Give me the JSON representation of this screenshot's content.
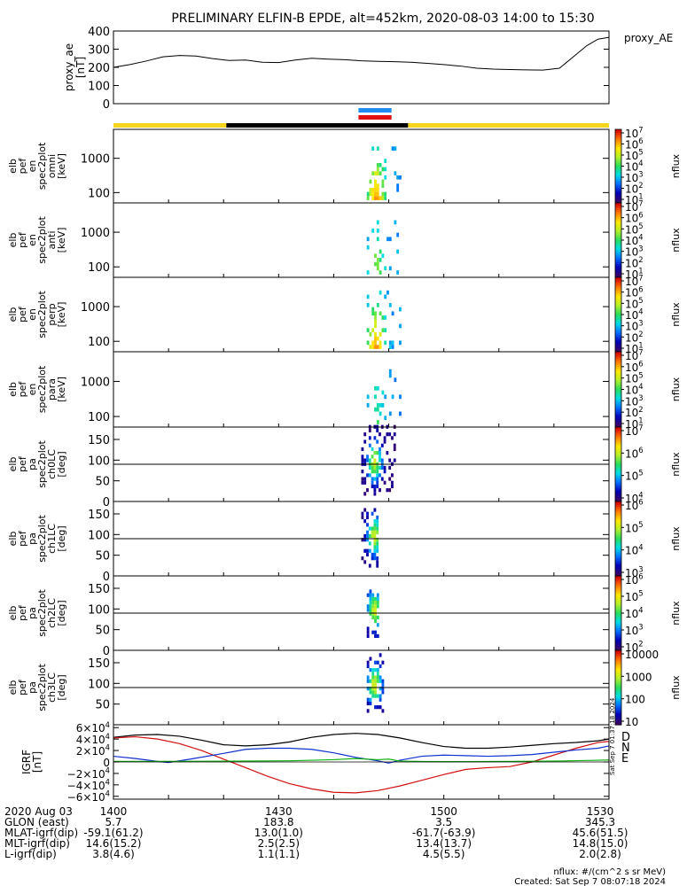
{
  "title": "PRELIMINARY ELFIN-B EPDE, alt=452km, 2020-08-03 14:00 to 15:30",
  "colors": {
    "bar_yellow": "#f5d41c",
    "bar_black": "#000000",
    "bar_blue": "#1e8cf0",
    "bar_red": "#e01010",
    "igrf_total": "#000000",
    "igrf_d": "#d01010",
    "igrf_n": "#1030d0",
    "igrf_e": "#10b010"
  },
  "chart_data": [
    {
      "type": "line",
      "panel": "proxy_ae",
      "ylabel": [
        "proxy_ae",
        "[nT]"
      ],
      "legend": "proxy_AE",
      "ylim": [
        0,
        400
      ],
      "yticks": [
        "400",
        "300",
        "200",
        "100",
        "0"
      ],
      "ytick_values": [
        400,
        300,
        200,
        100,
        0
      ],
      "xlim": [
        0,
        90
      ],
      "series": [
        {
          "x": [
            0,
            3,
            6,
            9,
            12,
            15,
            18,
            21,
            24,
            27,
            30,
            33,
            36,
            39,
            42,
            45,
            48,
            51,
            54,
            57,
            60,
            63,
            66,
            69,
            72,
            75,
            78,
            81,
            84,
            86,
            88,
            90
          ],
          "values": [
            200,
            215,
            235,
            258,
            265,
            262,
            248,
            238,
            240,
            228,
            226,
            240,
            250,
            245,
            242,
            236,
            233,
            231,
            228,
            222,
            215,
            207,
            195,
            190,
            188,
            186,
            185,
            195,
            270,
            320,
            355,
            365
          ]
        }
      ]
    },
    {
      "type": "heatmap",
      "panel": "elb_pef_en_spec2plot_omni",
      "ylabel": [
        "elb",
        "pef",
        "en",
        "spec2plot",
        "omni",
        "[keV]"
      ],
      "yticks": [
        "1000",
        "100"
      ],
      "colorbar": {
        "label": "nflux",
        "ticks": [
          "10^7",
          "10^6",
          "10^5",
          "10^4",
          "10^3",
          "10^2",
          "10^1"
        ]
      },
      "activity_minutes": [
        46,
        52
      ]
    },
    {
      "type": "heatmap",
      "panel": "elb_pef_en_spec2plot_anti",
      "ylabel": [
        "elb",
        "pef",
        "en",
        "spec2plot",
        "anti",
        "[keV]"
      ],
      "yticks": [
        "1000",
        "100"
      ],
      "colorbar": {
        "label": "nflux",
        "ticks": [
          "10^7",
          "10^6",
          "10^5",
          "10^4",
          "10^3",
          "10^2",
          "10^1"
        ]
      },
      "activity_minutes": [
        46,
        52
      ]
    },
    {
      "type": "heatmap",
      "panel": "elb_pef_en_spec2plot_perp",
      "ylabel": [
        "elb",
        "pef",
        "en",
        "spec2plot",
        "perp",
        "[keV]"
      ],
      "yticks": [
        "1000",
        "100"
      ],
      "colorbar": {
        "label": "nflux",
        "ticks": [
          "10^7",
          "10^6",
          "10^5",
          "10^4",
          "10^3",
          "10^2",
          "10^1"
        ]
      },
      "activity_minutes": [
        46,
        52
      ]
    },
    {
      "type": "heatmap",
      "panel": "elb_pef_en_spec2plot_para",
      "ylabel": [
        "elb",
        "pef",
        "en",
        "spec2plot",
        "para",
        "[keV]"
      ],
      "yticks": [
        "1000",
        "100"
      ],
      "colorbar": {
        "label": "nflux",
        "ticks": [
          "10^7",
          "10^6",
          "10^5",
          "10^4",
          "10^3",
          "10^2",
          "10^1"
        ]
      },
      "activity_minutes": [
        46,
        52
      ]
    },
    {
      "type": "heatmap",
      "panel": "elb_pef_pa_spec2plot_ch0LC",
      "ylabel": [
        "elb",
        "pef",
        "pa",
        "spec2plot",
        "ch0LC",
        "[deg]"
      ],
      "yticks": [
        "150",
        "100",
        "50",
        "0"
      ],
      "ytick_values": [
        150,
        100,
        50,
        0
      ],
      "ylim": [
        0,
        180
      ],
      "colorbar": {
        "label": "nflux",
        "ticks": [
          "10^7",
          "10^6",
          "10^5",
          "10^4"
        ]
      },
      "activity_minutes": [
        45,
        51
      ]
    },
    {
      "type": "heatmap",
      "panel": "elb_pef_pa_spec2plot_ch1LC",
      "ylabel": [
        "elb",
        "pef",
        "pa",
        "spec2plot",
        "ch1LC",
        "[deg]"
      ],
      "yticks": [
        "150",
        "100",
        "50",
        "0"
      ],
      "ytick_values": [
        150,
        100,
        50,
        0
      ],
      "ylim": [
        0,
        180
      ],
      "colorbar": {
        "label": "nflux",
        "ticks": [
          "10^6",
          "10^5",
          "10^4",
          "10^3"
        ]
      },
      "activity_minutes": [
        45,
        48
      ]
    },
    {
      "type": "heatmap",
      "panel": "elb_pef_pa_spec2plot_ch2LC",
      "ylabel": [
        "elb",
        "pef",
        "pa",
        "spec2plot",
        "ch2LC",
        "[deg]"
      ],
      "yticks": [
        "150",
        "100",
        "50",
        "0"
      ],
      "ytick_values": [
        150,
        100,
        50,
        0
      ],
      "ylim": [
        0,
        180
      ],
      "colorbar": {
        "label": "nflux",
        "ticks": [
          "10^6",
          "10^5",
          "10^4",
          "10^3",
          "10^2"
        ]
      },
      "activity_minutes": [
        46,
        48
      ]
    },
    {
      "type": "heatmap",
      "panel": "elb_pef_pa_spec2plot_ch3LC",
      "ylabel": [
        "elb",
        "pef",
        "pa",
        "spec2plot",
        "ch3LC",
        "[deg]"
      ],
      "yticks": [
        "150",
        "100",
        "50"
      ],
      "ytick_values": [
        150,
        100,
        50
      ],
      "ylim": [
        0,
        180
      ],
      "colorbar": {
        "label": "nflux",
        "ticks": [
          "10000",
          "1000",
          "100",
          "10"
        ]
      },
      "activity_minutes": [
        46,
        49
      ]
    },
    {
      "type": "line",
      "panel": "igrf",
      "ylabel": [
        "IGRF",
        "[nT]"
      ],
      "yticks": [
        "6×10^4",
        "4×10^4",
        "2×10^4",
        "0",
        "−2×10^4",
        "−4×10^4",
        "−6×10^4"
      ],
      "ytick_values": [
        60000,
        40000,
        20000,
        0,
        -20000,
        -40000,
        -60000
      ],
      "ylim": [
        -65000,
        65000
      ],
      "xlim": [
        0,
        90
      ],
      "legend": [
        "D",
        "N",
        "E"
      ],
      "series": [
        {
          "name": "total",
          "x": [
            0,
            4,
            8,
            12,
            16,
            20,
            24,
            28,
            32,
            36,
            40,
            44,
            48,
            52,
            56,
            60,
            64,
            68,
            72,
            76,
            80,
            84,
            88,
            90
          ],
          "values": [
            43000,
            47000,
            48000,
            45000,
            38000,
            30000,
            28000,
            30000,
            35000,
            43000,
            48000,
            50000,
            48000,
            42000,
            34000,
            27000,
            24000,
            24000,
            26000,
            29000,
            32000,
            34000,
            37000,
            40000
          ]
        },
        {
          "name": "D",
          "x": [
            0,
            4,
            8,
            12,
            16,
            20,
            24,
            28,
            32,
            36,
            40,
            44,
            48,
            52,
            56,
            60,
            64,
            68,
            72,
            76,
            80,
            84,
            88,
            90
          ],
          "values": [
            42000,
            44000,
            40000,
            32000,
            20000,
            5000,
            -10000,
            -25000,
            -38000,
            -47000,
            -53000,
            -54000,
            -50000,
            -42000,
            -32000,
            -22000,
            -13000,
            -10000,
            -8000,
            0,
            12000,
            24000,
            34000,
            36000
          ]
        },
        {
          "name": "N",
          "x": [
            0,
            4,
            8,
            10,
            14,
            20,
            24,
            28,
            32,
            36,
            40,
            44,
            48,
            50,
            52,
            56,
            60,
            64,
            68,
            72,
            76,
            80,
            84,
            88,
            90
          ],
          "values": [
            10000,
            6000,
            1000,
            -1000,
            5000,
            15000,
            22000,
            24000,
            24000,
            22000,
            16000,
            8000,
            2000,
            -2000,
            3000,
            10000,
            12000,
            11000,
            10000,
            11000,
            13000,
            17000,
            21000,
            24000,
            28000
          ]
        },
        {
          "name": "E",
          "x": [
            0,
            8,
            16,
            24,
            32,
            36,
            40,
            44,
            48,
            50,
            52,
            56,
            60,
            64,
            68,
            72,
            76,
            80,
            84,
            88,
            90
          ],
          "values": [
            1000,
            1000,
            1200,
            1500,
            2000,
            3000,
            4000,
            6000,
            4000,
            5000,
            1500,
            800,
            600,
            700,
            800,
            1000,
            1200,
            1500,
            2200,
            3000,
            3500
          ]
        }
      ]
    }
  ],
  "x_axis": {
    "ticks": [
      "1400",
      "1430",
      "1500",
      "1530"
    ],
    "tick_minutes": [
      0,
      30,
      60,
      90
    ],
    "rows": [
      {
        "label": "2020 Aug 03",
        "values": [
          "1400",
          "1430",
          "1500",
          "1530"
        ]
      },
      {
        "label": "GLON (east)",
        "values": [
          "5.7",
          "183.8",
          "3.5",
          "345.3"
        ]
      },
      {
        "label": "MLAT-igrf(dip)",
        "values": [
          "-59.1(61.2)",
          "13.0(1.0)",
          "-61.7(-63.9)",
          "45.6(51.5)"
        ]
      },
      {
        "label": "MLT-igrf(dip)",
        "values": [
          "14.6(15.2)",
          "2.5(2.5)",
          "13.4(13.7)",
          "14.8(15.0)"
        ]
      },
      {
        "label": "L-igrf(dip)",
        "values": [
          "3.8(4.6)",
          "1.1(1.1)",
          "4.5(5.5)",
          "2.0(2.8)"
        ]
      }
    ]
  },
  "footer": {
    "units": "nflux: #/(cm^2 s sr MeV)",
    "created": "Created: Sat Sep  7 08:07:18 2024",
    "side_stamp": "Sat Sep  7 01:37:18 2024"
  },
  "bars": {
    "yellow_minutes": [
      [
        0,
        20.5
      ],
      [
        53.5,
        90
      ]
    ],
    "black_minutes": [
      20.5,
      53.5
    ],
    "science_minutes": [
      44.5,
      50.5
    ]
  }
}
